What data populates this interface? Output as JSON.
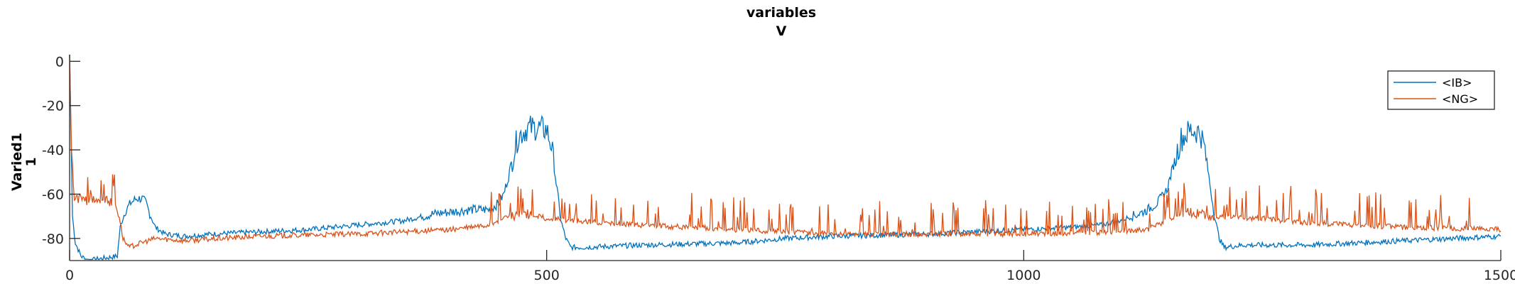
{
  "chart_data": {
    "type": "line",
    "title": "variables",
    "subtitle": "V",
    "xlabel": "",
    "ylabel": "Varied1",
    "ylabel2": "1",
    "xlim": [
      0,
      1500
    ],
    "ylim": [
      -90,
      3
    ],
    "xticks": [
      0,
      500,
      1000,
      1500
    ],
    "xtick_labels": [
      "0",
      "500",
      "1000",
      "1500"
    ],
    "yticks": [
      0,
      -20,
      -40,
      -60,
      -80
    ],
    "ytick_labels": [
      "0",
      "-20",
      "-40",
      "-60",
      "-80"
    ],
    "grid": false,
    "legend_position": "top-right",
    "series": [
      {
        "name": "<IB>",
        "color": "#0072BD",
        "noise": 1.2,
        "points": [
          [
            0,
            3
          ],
          [
            3,
            -70
          ],
          [
            6,
            -82
          ],
          [
            12,
            -88
          ],
          [
            20,
            -90
          ],
          [
            35,
            -89
          ],
          [
            50,
            -88
          ],
          [
            53,
            -75
          ],
          [
            58,
            -68
          ],
          [
            64,
            -64
          ],
          [
            70,
            -62
          ],
          [
            76,
            -62
          ],
          [
            80,
            -64
          ],
          [
            85,
            -70
          ],
          [
            90,
            -75
          ],
          [
            100,
            -78
          ],
          [
            120,
            -79
          ],
          [
            150,
            -78
          ],
          [
            200,
            -77
          ],
          [
            250,
            -76
          ],
          [
            300,
            -74
          ],
          [
            350,
            -72
          ],
          [
            380,
            -69
          ],
          [
            420,
            -67
          ],
          [
            440,
            -67
          ],
          [
            450,
            -64
          ],
          [
            455,
            -60
          ],
          [
            460,
            -52
          ],
          [
            465,
            -42
          ],
          [
            470,
            -34
          ],
          [
            480,
            -30
          ],
          [
            490,
            -30
          ],
          [
            500,
            -31
          ],
          [
            505,
            -38
          ],
          [
            510,
            -55
          ],
          [
            515,
            -72
          ],
          [
            520,
            -80
          ],
          [
            525,
            -84
          ],
          [
            540,
            -84
          ],
          [
            600,
            -83
          ],
          [
            700,
            -82
          ],
          [
            750,
            -80
          ],
          [
            800,
            -79
          ],
          [
            900,
            -78
          ],
          [
            1000,
            -76
          ],
          [
            1050,
            -75
          ],
          [
            1080,
            -74
          ],
          [
            1100,
            -72
          ],
          [
            1120,
            -69
          ],
          [
            1130,
            -67
          ],
          [
            1140,
            -64
          ],
          [
            1150,
            -58
          ],
          [
            1155,
            -50
          ],
          [
            1160,
            -42
          ],
          [
            1165,
            -35
          ],
          [
            1175,
            -31
          ],
          [
            1185,
            -32
          ],
          [
            1190,
            -40
          ],
          [
            1195,
            -55
          ],
          [
            1200,
            -70
          ],
          [
            1205,
            -80
          ],
          [
            1210,
            -84
          ],
          [
            1230,
            -83
          ],
          [
            1300,
            -83
          ],
          [
            1400,
            -81
          ],
          [
            1500,
            -79
          ]
        ]
      },
      {
        "name": "<NG>",
        "color": "#D95319",
        "noise": 1.2,
        "points": [
          [
            0,
            3
          ],
          [
            2,
            -40
          ],
          [
            5,
            -62
          ],
          [
            10,
            -62
          ],
          [
            20,
            -63
          ],
          [
            30,
            -62
          ],
          [
            40,
            -63
          ],
          [
            48,
            -64
          ],
          [
            52,
            -70
          ],
          [
            56,
            -80
          ],
          [
            62,
            -84
          ],
          [
            75,
            -82
          ],
          [
            90,
            -80
          ],
          [
            120,
            -81
          ],
          [
            200,
            -79
          ],
          [
            300,
            -78
          ],
          [
            400,
            -76
          ],
          [
            440,
            -74
          ],
          [
            460,
            -70
          ],
          [
            480,
            -69
          ],
          [
            500,
            -71
          ],
          [
            530,
            -72
          ],
          [
            600,
            -74
          ],
          [
            700,
            -76
          ],
          [
            750,
            -77
          ],
          [
            800,
            -78
          ],
          [
            900,
            -78
          ],
          [
            1000,
            -78
          ],
          [
            1100,
            -77
          ],
          [
            1130,
            -76
          ],
          [
            1150,
            -72
          ],
          [
            1170,
            -68
          ],
          [
            1200,
            -70
          ],
          [
            1250,
            -71
          ],
          [
            1300,
            -73
          ],
          [
            1400,
            -75
          ],
          [
            1500,
            -76
          ]
        ]
      }
    ]
  }
}
